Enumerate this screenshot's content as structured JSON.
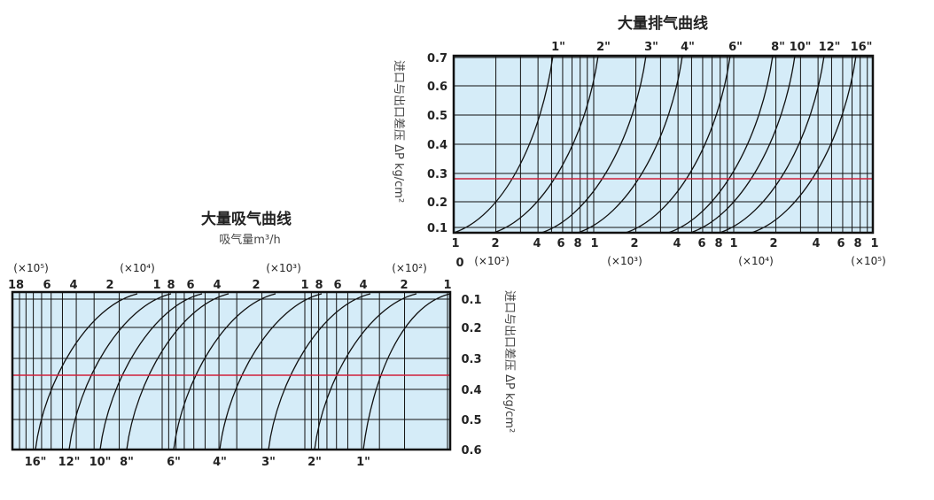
{
  "exhaust": {
    "title": "大量排气曲线",
    "y_axis_label": "进口与出口差压 ΔP kg/cm²",
    "y_ticks": [
      "0.7",
      "0.6",
      "0.5",
      "0.4",
      "0.3",
      "0.2",
      "0.1"
    ],
    "zero_label": "0",
    "x_ticks": [
      "1",
      "2",
      "4",
      "6",
      "8",
      "1",
      "2",
      "4",
      "6",
      "8",
      "1",
      "2",
      "4",
      "6",
      "8",
      "1"
    ],
    "multipliers": [
      "(×10²)",
      "(×10³)",
      "(×10⁴)",
      "(×10⁵)"
    ],
    "curve_labels": [
      "1\"",
      "2\"",
      "3\"",
      "4\"",
      "6\"",
      "8\"",
      "10\"",
      "12\"",
      "16\""
    ]
  },
  "suction": {
    "title": "大量吸气曲线",
    "subtitle": "吸气量m³/h",
    "y_axis_label": "进口与出口差压 ΔP kg/cm²",
    "y_ticks": [
      "0.1",
      "0.2",
      "0.3",
      "0.4",
      "0.5",
      "0.6"
    ],
    "x_ticks": [
      "18",
      "6",
      "4",
      "2",
      "1",
      "8",
      "6",
      "4",
      "2",
      "1",
      "8",
      "6",
      "4",
      "2",
      "1"
    ],
    "multipliers": [
      "(×10⁵)",
      "(×10⁴)",
      "(×10³)",
      "(×10²)"
    ],
    "curve_labels": [
      "16\"",
      "12\"",
      "10\"",
      "8\"",
      "6\"",
      "4\"",
      "3\"",
      "2\"",
      "1\""
    ]
  }
}
